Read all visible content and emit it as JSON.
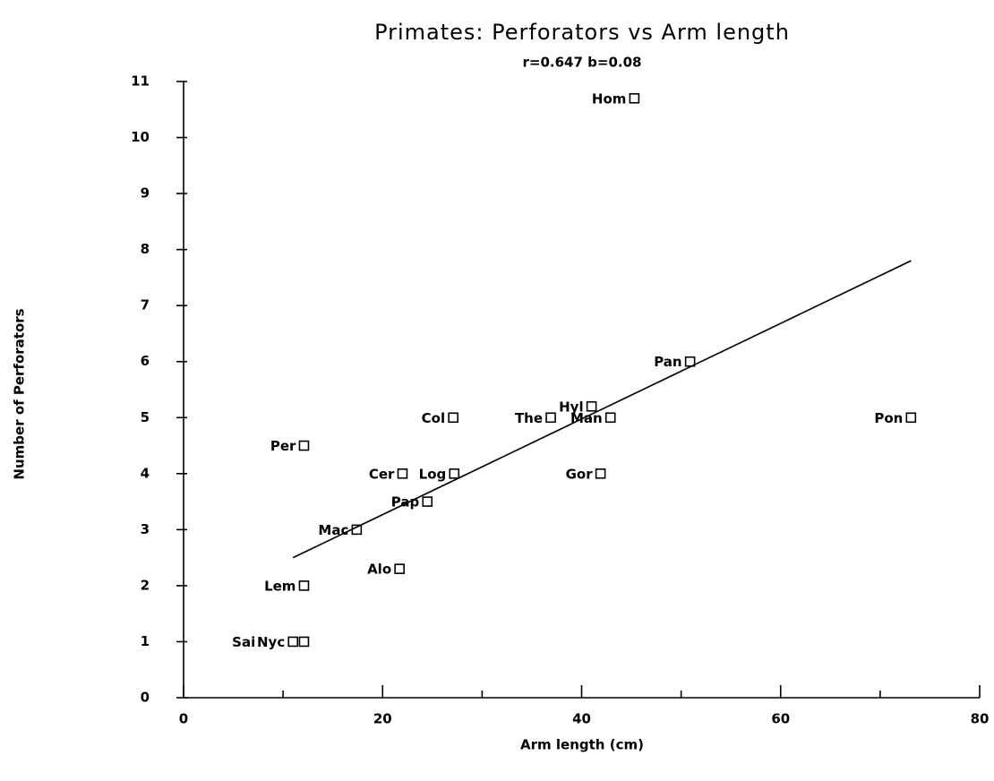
{
  "chart_data": {
    "type": "scatter",
    "title": "Primates: Perforators vs Arm length",
    "subtitle": "r=0.647   b=0.08",
    "x_label": "Arm length  (cm)",
    "y_label": "Number of Perforators",
    "labels": [
      "Hom",
      "Pan",
      "Pon",
      "Hyl",
      "Man",
      "The",
      "Gor",
      "Col",
      "Log",
      "Cer",
      "Pap",
      "Per",
      "Mac",
      "Alo",
      "Lem",
      "Nyc",
      "Sai"
    ],
    "x": [
      45.3,
      50.9,
      73.1,
      41.0,
      42.9,
      36.9,
      41.9,
      27.1,
      27.2,
      22.0,
      24.5,
      12.1,
      17.4,
      21.7,
      12.1,
      11.0,
      12.1
    ],
    "y": [
      10.7,
      6.0,
      5.0,
      5.2,
      5.0,
      5.0,
      4.0,
      5.0,
      4.0,
      4.0,
      3.5,
      4.5,
      3.0,
      2.3,
      2.0,
      1.0,
      1.0
    ],
    "fit": {
      "x": [
        11.0,
        73.1
      ],
      "y": [
        2.5,
        7.8
      ]
    },
    "xlim": [
      0,
      80
    ],
    "xticks": [
      0,
      20,
      40,
      60,
      80
    ],
    "xminor_ticks": [
      10,
      30,
      50,
      70
    ],
    "ylim": [
      0,
      11
    ],
    "yticks": [
      0,
      1,
      2,
      3,
      4,
      5,
      6,
      7,
      8,
      9,
      10,
      11
    ],
    "color": "#000000"
  }
}
